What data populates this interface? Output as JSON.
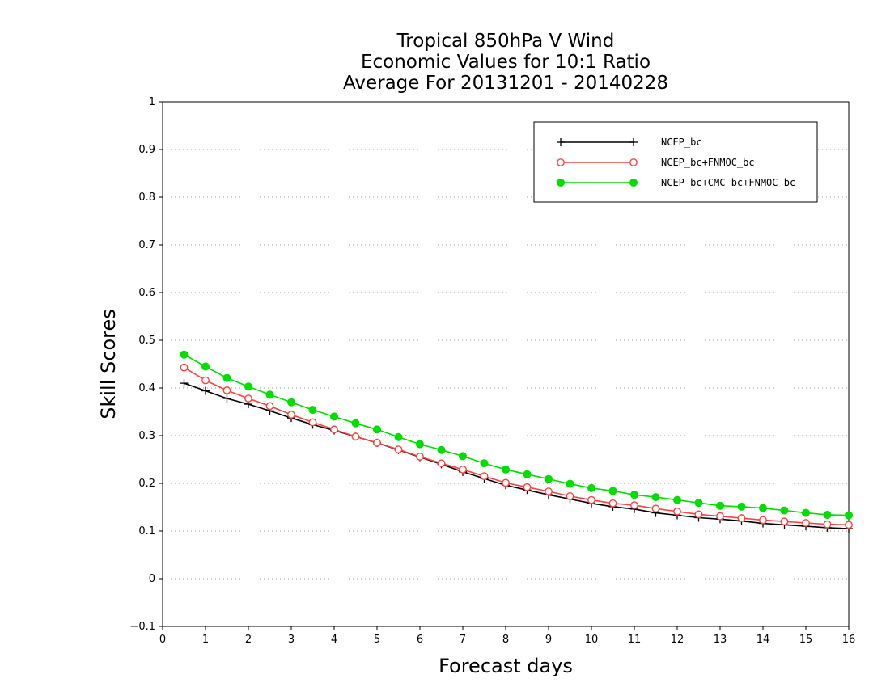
{
  "chart_data": {
    "type": "line",
    "title_lines": [
      "Tropical 850hPa V Wind",
      "Economic Values for 10:1 Ratio",
      "Average For 20131201 - 20140228"
    ],
    "xlabel": "Forecast days",
    "ylabel": "Skill Scores",
    "xlim": [
      0,
      16
    ],
    "ylim": [
      -0.1,
      1
    ],
    "xticks": [
      "0",
      "1",
      "2",
      "3",
      "4",
      "5",
      "6",
      "7",
      "8",
      "9",
      "10",
      "11",
      "12",
      "13",
      "14",
      "15",
      "16"
    ],
    "yticks": [
      "−0.1",
      "0",
      "0.1",
      "0.2",
      "0.3",
      "0.4",
      "0.5",
      "0.6",
      "0.7",
      "0.8",
      "0.9",
      "1"
    ],
    "grid": "horizontal dotted",
    "legend_position": "top-right",
    "x": [
      0.5,
      1,
      1.5,
      2,
      2.5,
      3,
      3.5,
      4,
      4.5,
      5,
      5.5,
      6,
      6.5,
      7,
      7.5,
      8,
      8.5,
      9,
      9.5,
      10,
      10.5,
      11,
      11.5,
      12,
      12.5,
      13,
      13.5,
      14,
      14.5,
      15,
      15.5,
      16
    ],
    "series": [
      {
        "name": "NCEP_bc",
        "color": "#000000",
        "marker": "plus",
        "values": [
          0.41,
          0.394,
          0.378,
          0.366,
          0.352,
          0.337,
          0.323,
          0.311,
          0.298,
          0.285,
          0.27,
          0.255,
          0.24,
          0.224,
          0.21,
          0.196,
          0.186,
          0.176,
          0.167,
          0.158,
          0.151,
          0.146,
          0.138,
          0.133,
          0.128,
          0.125,
          0.121,
          0.116,
          0.113,
          0.11,
          0.107,
          0.105
        ]
      },
      {
        "name": "NCEP_bc+FNMOC_bc",
        "color": "#ff4040",
        "marker": "open-circle",
        "values": [
          0.443,
          0.416,
          0.395,
          0.378,
          0.362,
          0.344,
          0.328,
          0.313,
          0.298,
          0.285,
          0.271,
          0.256,
          0.242,
          0.229,
          0.215,
          0.201,
          0.192,
          0.183,
          0.173,
          0.165,
          0.158,
          0.154,
          0.147,
          0.141,
          0.135,
          0.131,
          0.127,
          0.123,
          0.12,
          0.117,
          0.114,
          0.113
        ]
      },
      {
        "name": "NCEP_bc+CMC_bc+FNMOC_bc",
        "color": "#00dd00",
        "marker": "filled-circle",
        "values": [
          0.47,
          0.445,
          0.421,
          0.403,
          0.386,
          0.37,
          0.354,
          0.34,
          0.326,
          0.313,
          0.297,
          0.282,
          0.27,
          0.257,
          0.242,
          0.229,
          0.219,
          0.209,
          0.199,
          0.19,
          0.184,
          0.176,
          0.171,
          0.165,
          0.159,
          0.153,
          0.151,
          0.148,
          0.143,
          0.138,
          0.134,
          0.133
        ]
      }
    ]
  }
}
